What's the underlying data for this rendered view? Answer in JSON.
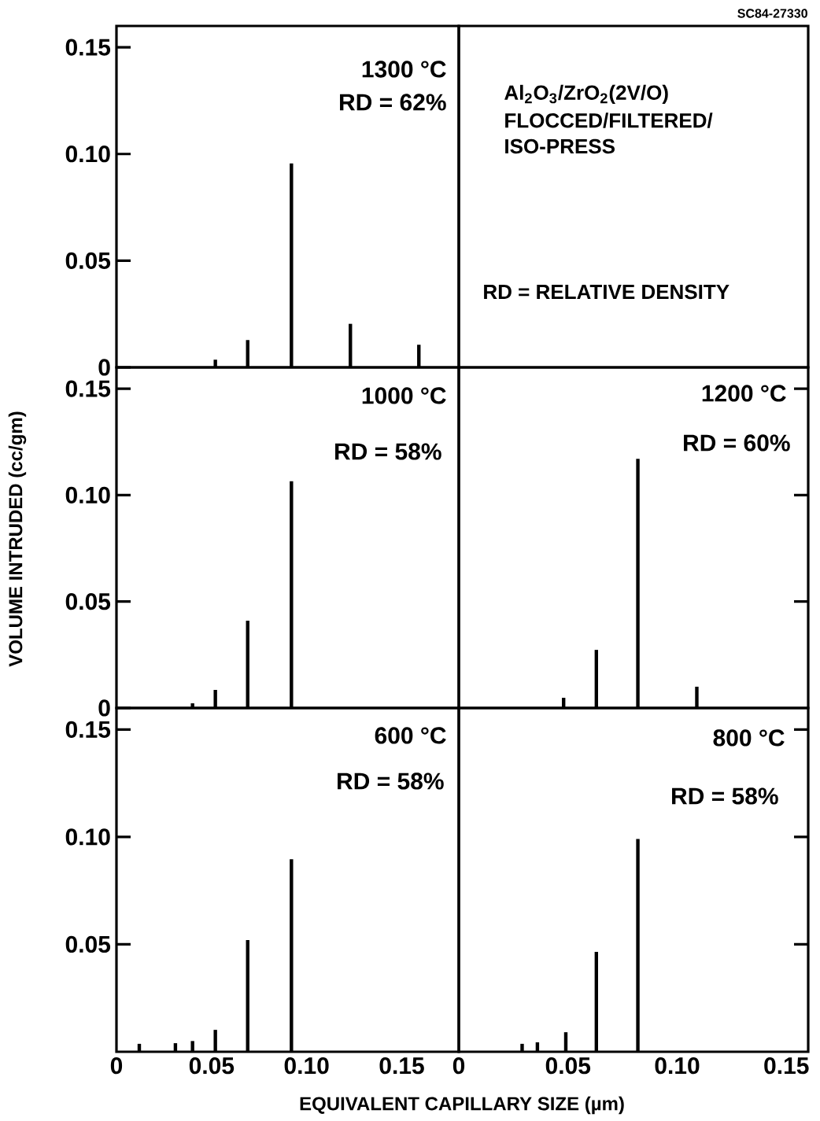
{
  "chart_data": [
    {
      "type": "bar",
      "color": "#000000",
      "x": [
        0.052,
        0.069,
        0.092,
        0.123,
        0.159
      ],
      "values": [
        0.0036,
        0.0128,
        0.0956,
        0.0204,
        0.0106
      ],
      "xlim": [
        0,
        0.18
      ],
      "ylim": [
        0,
        0.16
      ],
      "yticks": [
        {
          "value": 0,
          "label": "0"
        },
        {
          "value": 0.05,
          "label": "0.05"
        },
        {
          "value": 0.1,
          "label": "0.10"
        },
        {
          "value": 0.15,
          "label": "0.15"
        }
      ],
      "tick_labels": "y",
      "annotations": [
        "1300 °C",
        "RD = 62%"
      ]
    },
    {
      "type": "other",
      "annotations": [
        "SC84-27330",
        "Al$_{2}$O$_{3}$/ZrO$_{2}$(2V/O)",
        "FLOCCED/FILTERED/",
        "ISO-PRESS",
        "RD = RELATIVE DENSITY"
      ]
    },
    {
      "type": "bar",
      "color": "#000000",
      "x": [
        0.04,
        0.052,
        0.069,
        0.092
      ],
      "values": [
        0.0022,
        0.0085,
        0.041,
        0.1065
      ],
      "xlim": [
        0,
        0.18
      ],
      "ylim": [
        0,
        0.16
      ],
      "yticks": [
        {
          "value": 0,
          "label": "0"
        },
        {
          "value": 0.05,
          "label": "0.05"
        },
        {
          "value": 0.1,
          "label": "0.10"
        },
        {
          "value": 0.15,
          "label": "0.15"
        }
      ],
      "tick_labels": "y",
      "ylabel": "VOLUME INTRUDED (cc/gm)",
      "annotations": [
        "1000 °C",
        "RD = 58%"
      ]
    },
    {
      "type": "bar",
      "color": "#000000",
      "x": [
        0.048,
        0.063,
        0.082,
        0.109
      ],
      "values": [
        0.0048,
        0.0273,
        0.117,
        0.01
      ],
      "xlim": [
        0,
        0.16
      ],
      "ylim": [
        0,
        0.16
      ],
      "yticks": [
        {
          "value": 0.05,
          "label": null
        },
        {
          "value": 0.1,
          "label": null
        },
        {
          "value": 0.15,
          "label": null
        }
      ],
      "tick_labels": false,
      "annotations": [
        "1200 °C",
        "RD = 60%"
      ]
    },
    {
      "type": "bar",
      "color": "#000000",
      "x": [
        0.012,
        0.031,
        0.04,
        0.052,
        0.069,
        0.092
      ],
      "values": [
        0.0037,
        0.004,
        0.005,
        0.0102,
        0.052,
        0.0896
      ],
      "xlim": [
        0,
        0.18
      ],
      "ylim": [
        0,
        0.16
      ],
      "xticks": [
        {
          "value": 0,
          "label": "0"
        },
        {
          "value": 0.05,
          "label": "0.05"
        },
        {
          "value": 0.1,
          "label": "0.10"
        },
        {
          "value": 0.15,
          "label": "0.15"
        }
      ],
      "yticks": [
        {
          "value": 0.05,
          "label": "0.05"
        },
        {
          "value": 0.1,
          "label": "0.10"
        },
        {
          "value": 0.15,
          "label": "0.15"
        }
      ],
      "xlabel": "EQUIVALENT CAPILLARY SIZE (µm)",
      "annotations": [
        "600 °C",
        "RD = 58%"
      ]
    },
    {
      "type": "bar",
      "color": "#000000",
      "x": [
        0.029,
        0.036,
        0.049,
        0.063,
        0.082
      ],
      "values": [
        0.0037,
        0.0044,
        0.0091,
        0.0465,
        0.099
      ],
      "xlim": [
        0,
        0.16
      ],
      "ylim": [
        0,
        0.16
      ],
      "xticks": [
        {
          "value": 0,
          "label": "0"
        },
        {
          "value": 0.05,
          "label": "0.05"
        },
        {
          "value": 0.1,
          "label": "0.10"
        },
        {
          "value": 0.15,
          "label": "0.15"
        }
      ],
      "yticks": [
        {
          "value": 0.05,
          "label": null
        },
        {
          "value": 0.1,
          "label": null
        },
        {
          "value": 0.15,
          "label": null
        }
      ],
      "tick_labels": "x",
      "annotations": [
        "800 °C",
        "RD = 58%"
      ]
    }
  ]
}
